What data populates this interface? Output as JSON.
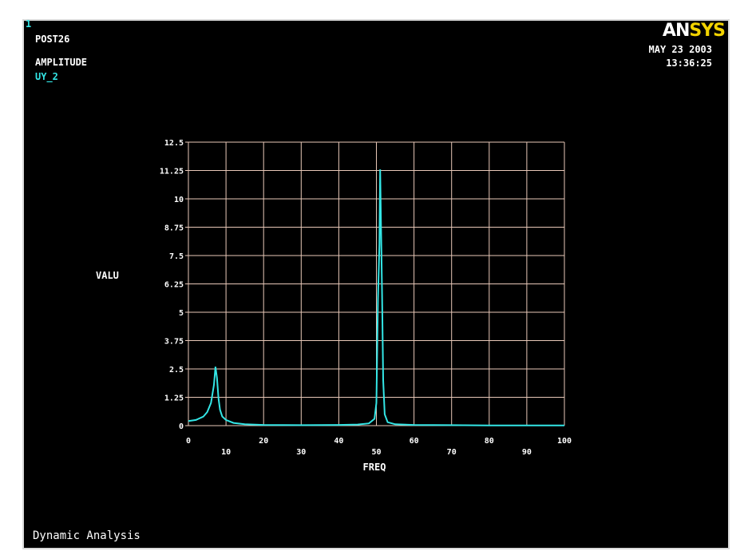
{
  "window": {
    "number": "1",
    "program": "POST26",
    "plot_label": "AMPLITUDE",
    "variable": "UY_2",
    "date": "MAY 23 2003",
    "time": "13:36:25",
    "footer": "Dynamic Analysis",
    "logo_an": "AN",
    "logo_sys": "SYS"
  },
  "colors": {
    "background": "#000000",
    "grid": "#e8c8b8",
    "curve": "#33e6e6",
    "logo_accent": "#f2d300"
  },
  "chart_data": {
    "type": "line",
    "xlabel": "FREQ",
    "ylabel": "VALU",
    "xlim": [
      0,
      100
    ],
    "ylim": [
      0,
      12.5
    ],
    "x_ticks": [
      "0",
      "10",
      "20",
      "30",
      "40",
      "50",
      "60",
      "70",
      "80",
      "90",
      "100"
    ],
    "y_ticks": [
      "0",
      "1.25",
      "2.5",
      "3.75",
      "5",
      "6.25",
      "7.5",
      "8.75",
      "10",
      "11.25",
      "12.5"
    ],
    "grid": true,
    "series": [
      {
        "name": "UY_2",
        "x": [
          0,
          2,
          4,
          5,
          6,
          6.8,
          7.2,
          7.6,
          8,
          8.4,
          9,
          10,
          12,
          15,
          20,
          30,
          40,
          45,
          48,
          49.5,
          50,
          50.4,
          50.8,
          51,
          51.2,
          51.5,
          51.8,
          52.2,
          53,
          55,
          60,
          70,
          80,
          90,
          100
        ],
        "y": [
          0.2,
          0.25,
          0.4,
          0.6,
          1.0,
          1.8,
          2.6,
          2.1,
          1.2,
          0.7,
          0.4,
          0.25,
          0.12,
          0.06,
          0.03,
          0.02,
          0.03,
          0.05,
          0.1,
          0.3,
          1.0,
          5.5,
          8.0,
          11.3,
          9.0,
          5.8,
          2.0,
          0.5,
          0.15,
          0.06,
          0.03,
          0.02,
          0.01,
          0.01,
          0.01
        ]
      }
    ]
  }
}
